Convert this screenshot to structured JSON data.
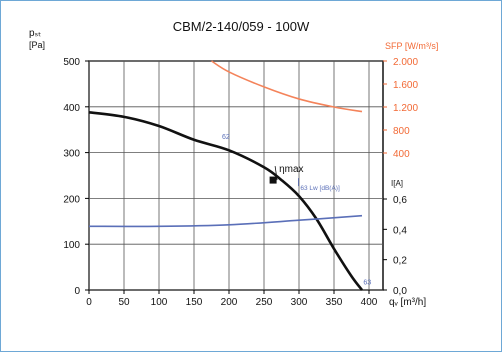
{
  "chart_data": {
    "type": "line",
    "title": "CBM/2-140/059 - 100W",
    "xlabel": "qᵥ [m³/h]",
    "x_ticks": [
      "0",
      "50",
      "100",
      "150",
      "200",
      "250",
      "300",
      "350",
      "400"
    ],
    "xlim": [
      0,
      420
    ],
    "axes": [
      {
        "key": "pressure",
        "label_top": "pₛₜ",
        "label_bottom": "[Pa]",
        "ticks": [
          "0",
          "100",
          "200",
          "300",
          "400",
          "500"
        ],
        "lim": [
          0,
          500
        ],
        "color": "#000000"
      },
      {
        "key": "sfp",
        "label": "SFP [W/m³/s]",
        "ticks": [
          "400",
          "800",
          "1.200",
          "1.600",
          "2.000"
        ],
        "tick_values": [
          400,
          800,
          1200,
          1600,
          2000
        ],
        "color": "#f26a36"
      },
      {
        "key": "current",
        "label": "I[A]",
        "ticks": [
          "0,0",
          "0,2",
          "0,4",
          "0,6"
        ],
        "tick_values": [
          0,
          0.2,
          0.4,
          0.6
        ],
        "color": "#000000"
      }
    ],
    "series": [
      {
        "axis": "pressure",
        "color": "#111111",
        "label": "63",
        "x": [
          0,
          50,
          100,
          150,
          200,
          250,
          275,
          300,
          325,
          350,
          375,
          390
        ],
        "y": [
          388,
          378,
          358,
          328,
          305,
          268,
          240,
          205,
          155,
          90,
          30,
          0
        ]
      },
      {
        "axis": "sfp",
        "color": "#f4835a",
        "x": [
          175,
          200,
          250,
          300,
          350,
          390
        ],
        "y": [
          2000,
          1810,
          1550,
          1340,
          1200,
          1120
        ]
      },
      {
        "axis": "current",
        "color": "#5a6fb8",
        "x": [
          0,
          100,
          200,
          300,
          390
        ],
        "y": [
          0.42,
          0.42,
          0.43,
          0.46,
          0.49
        ]
      }
    ],
    "annotations": [
      {
        "text": "ηmax",
        "x": 263,
        "y_pressure": 240
      },
      {
        "text": "63 Lw [dB(A)]",
        "x": 302,
        "y_pressure": 218
      },
      {
        "text": "62",
        "x": 190,
        "y_pressure": 330
      },
      {
        "text": "63",
        "x": 392,
        "y_pressure": 12
      }
    ],
    "grid": true
  }
}
